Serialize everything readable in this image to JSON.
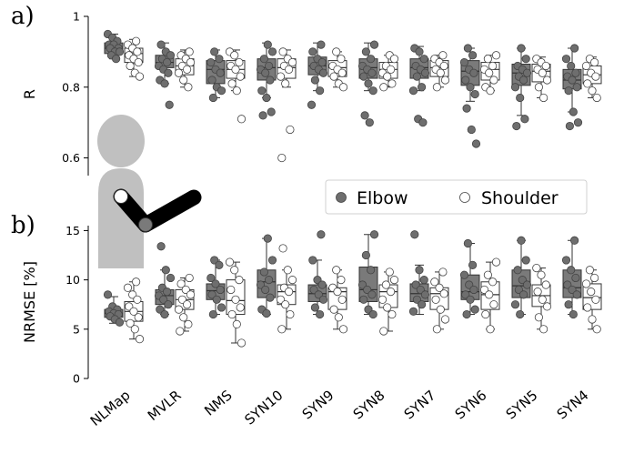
{
  "panels": {
    "a": "a)",
    "b": "b)"
  },
  "legend": {
    "elbow": "Elbow",
    "shoulder": "Shoulder"
  },
  "colors": {
    "elbow_fill": "#7a7a7a",
    "elbow_point": "#6e6e6e",
    "shoulder_fill": "#ffffff",
    "edge": "#333333",
    "silhouette": "#c0c0c0",
    "arm": "#000000"
  },
  "chart_data": [
    {
      "type": "box",
      "panel": "a",
      "ylabel": "R",
      "ylim": [
        0.55,
        1.0
      ],
      "yticks": [
        0.6,
        0.8,
        1
      ],
      "ytick_labels": [
        "0.6",
        "0.8",
        "1"
      ],
      "grid": false,
      "legend_position": "bottom-right",
      "categories": [
        "NLMap",
        "MVLR",
        "NMS",
        "SYN10",
        "SYN9",
        "SYN8",
        "SYN7",
        "SYN6",
        "SYN5",
        "SYN4"
      ],
      "series": [
        {
          "name": "Elbow",
          "boxes": [
            {
              "whislo": 0.88,
              "q1": 0.895,
              "med": 0.91,
              "q3": 0.925,
              "whishi": 0.95
            },
            {
              "whislo": 0.81,
              "q1": 0.855,
              "med": 0.87,
              "q3": 0.89,
              "whishi": 0.925
            },
            {
              "whislo": 0.77,
              "q1": 0.81,
              "med": 0.85,
              "q3": 0.875,
              "whishi": 0.905
            },
            {
              "whislo": 0.77,
              "q1": 0.82,
              "med": 0.855,
              "q3": 0.88,
              "whishi": 0.925
            },
            {
              "whislo": 0.79,
              "q1": 0.835,
              "med": 0.86,
              "q3": 0.885,
              "whishi": 0.925
            },
            {
              "whislo": 0.79,
              "q1": 0.825,
              "med": 0.855,
              "q3": 0.88,
              "whishi": 0.925
            },
            {
              "whislo": 0.79,
              "q1": 0.825,
              "med": 0.855,
              "q3": 0.88,
              "whishi": 0.915
            },
            {
              "whislo": 0.76,
              "q1": 0.805,
              "med": 0.845,
              "q3": 0.875,
              "whishi": 0.91
            },
            {
              "whislo": 0.72,
              "q1": 0.805,
              "med": 0.84,
              "q3": 0.865,
              "whishi": 0.91
            },
            {
              "whislo": 0.73,
              "q1": 0.795,
              "med": 0.82,
              "q3": 0.85,
              "whishi": 0.91
            }
          ],
          "points": [
            [
              0.95,
              0.94,
              0.93,
              0.92,
              0.92,
              0.91,
              0.91,
              0.9,
              0.9,
              0.89,
              0.88
            ],
            [
              0.92,
              0.9,
              0.89,
              0.88,
              0.87,
              0.86,
              0.85,
              0.84,
              0.82,
              0.81,
              0.75
            ],
            [
              0.9,
              0.88,
              0.87,
              0.85,
              0.84,
              0.82,
              0.8,
              0.79,
              0.77
            ],
            [
              0.92,
              0.9,
              0.88,
              0.86,
              0.85,
              0.84,
              0.82,
              0.79,
              0.77,
              0.73,
              0.72
            ],
            [
              0.92,
              0.9,
              0.88,
              0.87,
              0.86,
              0.85,
              0.84,
              0.82,
              0.79,
              0.75
            ],
            [
              0.92,
              0.9,
              0.88,
              0.86,
              0.85,
              0.84,
              0.83,
              0.81,
              0.79,
              0.72,
              0.7
            ],
            [
              0.91,
              0.9,
              0.88,
              0.86,
              0.85,
              0.84,
              0.83,
              0.8,
              0.79,
              0.71,
              0.7
            ],
            [
              0.91,
              0.89,
              0.87,
              0.85,
              0.84,
              0.82,
              0.8,
              0.78,
              0.74,
              0.68,
              0.64
            ],
            [
              0.91,
              0.88,
              0.86,
              0.85,
              0.84,
              0.83,
              0.82,
              0.8,
              0.77,
              0.71,
              0.69
            ],
            [
              0.91,
              0.88,
              0.86,
              0.84,
              0.83,
              0.82,
              0.8,
              0.79,
              0.73,
              0.7,
              0.69
            ]
          ]
        },
        {
          "name": "Shoulder",
          "boxes": [
            {
              "whislo": 0.83,
              "q1": 0.87,
              "med": 0.895,
              "q3": 0.91,
              "whishi": 0.935
            },
            {
              "whislo": 0.8,
              "q1": 0.835,
              "med": 0.86,
              "q3": 0.88,
              "whishi": 0.905
            },
            {
              "whislo": 0.79,
              "q1": 0.825,
              "med": 0.85,
              "q3": 0.875,
              "whishi": 0.905
            },
            {
              "whislo": 0.8,
              "q1": 0.825,
              "med": 0.855,
              "q3": 0.88,
              "whishi": 0.905
            },
            {
              "whislo": 0.8,
              "q1": 0.83,
              "med": 0.855,
              "q3": 0.875,
              "whishi": 0.9
            },
            {
              "whislo": 0.8,
              "q1": 0.825,
              "med": 0.85,
              "q3": 0.87,
              "whishi": 0.89
            },
            {
              "whislo": 0.8,
              "q1": 0.83,
              "med": 0.855,
              "q3": 0.875,
              "whishi": 0.89
            },
            {
              "whislo": 0.79,
              "q1": 0.82,
              "med": 0.85,
              "q3": 0.87,
              "whishi": 0.89
            },
            {
              "whislo": 0.77,
              "q1": 0.815,
              "med": 0.845,
              "q3": 0.865,
              "whishi": 0.885
            },
            {
              "whislo": 0.77,
              "q1": 0.81,
              "med": 0.835,
              "q3": 0.86,
              "whishi": 0.885
            }
          ],
          "points": [
            [
              0.93,
              0.92,
              0.91,
              0.9,
              0.89,
              0.88,
              0.87,
              0.86,
              0.84,
              0.83
            ],
            [
              0.9,
              0.89,
              0.88,
              0.87,
              0.86,
              0.85,
              0.84,
              0.82,
              0.8
            ],
            [
              0.9,
              0.89,
              0.87,
              0.86,
              0.85,
              0.83,
              0.81,
              0.79,
              0.71
            ],
            [
              0.9,
              0.88,
              0.87,
              0.86,
              0.85,
              0.83,
              0.81,
              0.68,
              0.6
            ],
            [
              0.9,
              0.88,
              0.86,
              0.85,
              0.84,
              0.83,
              0.81,
              0.8
            ],
            [
              0.89,
              0.88,
              0.86,
              0.85,
              0.84,
              0.83,
              0.81,
              0.8
            ],
            [
              0.89,
              0.88,
              0.87,
              0.86,
              0.85,
              0.84,
              0.82,
              0.8
            ],
            [
              0.89,
              0.88,
              0.86,
              0.85,
              0.84,
              0.82,
              0.8,
              0.79
            ],
            [
              0.88,
              0.87,
              0.86,
              0.85,
              0.84,
              0.82,
              0.8,
              0.77
            ],
            [
              0.88,
              0.87,
              0.86,
              0.84,
              0.83,
              0.81,
              0.79,
              0.77
            ]
          ]
        }
      ]
    },
    {
      "type": "box",
      "panel": "b",
      "ylabel": "NRMSE [%]",
      "ylim": [
        0,
        15.5
      ],
      "yticks": [
        0,
        5,
        10,
        15
      ],
      "ytick_labels": [
        "0",
        "5",
        "10",
        "15"
      ],
      "grid": false,
      "categories": [
        "NLMap",
        "MVLR",
        "NMS",
        "SYN10",
        "SYN9",
        "SYN8",
        "SYN7",
        "SYN6",
        "SYN5",
        "SYN4"
      ],
      "series": [
        {
          "name": "Elbow",
          "boxes": [
            {
              "whislo": 5.6,
              "q1": 6.2,
              "med": 6.6,
              "q3": 7.0,
              "whishi": 8.3
            },
            {
              "whislo": 6.5,
              "q1": 7.5,
              "med": 8.4,
              "q3": 9.0,
              "whishi": 11.0
            },
            {
              "whislo": 6.5,
              "q1": 8.0,
              "med": 8.9,
              "q3": 9.6,
              "whishi": 12.0
            },
            {
              "whislo": 6.5,
              "q1": 8.2,
              "med": 9.8,
              "q3": 11.0,
              "whishi": 14.2
            },
            {
              "whislo": 6.5,
              "q1": 7.8,
              "med": 8.6,
              "q3": 9.5,
              "whishi": 12.0
            },
            {
              "whislo": 6.5,
              "q1": 7.8,
              "med": 9.0,
              "q3": 11.3,
              "whishi": 14.6
            },
            {
              "whislo": 6.5,
              "q1": 7.8,
              "med": 8.6,
              "q3": 9.6,
              "whishi": 11.5
            },
            {
              "whislo": 6.5,
              "q1": 8.0,
              "med": 8.8,
              "q3": 10.5,
              "whishi": 13.7
            },
            {
              "whislo": 6.5,
              "q1": 8.2,
              "med": 9.4,
              "q3": 11.0,
              "whishi": 14.0
            },
            {
              "whislo": 6.5,
              "q1": 8.2,
              "med": 9.2,
              "q3": 11.0,
              "whishi": 14.0
            }
          ],
          "points": [
            [
              8.5,
              7.3,
              7.0,
              6.8,
              6.6,
              6.5,
              6.3,
              6.0,
              5.7
            ],
            [
              13.4,
              11.0,
              10.2,
              9.2,
              8.8,
              8.4,
              8.0,
              7.5,
              7.0,
              6.5
            ],
            [
              12.0,
              11.5,
              10.2,
              9.6,
              9.0,
              8.5,
              8.0,
              7.2,
              6.5
            ],
            [
              14.2,
              12.0,
              10.8,
              10.0,
              9.5,
              9.0,
              8.2,
              7.0,
              6.6
            ],
            [
              14.6,
              12.0,
              10.0,
              9.5,
              9.0,
              8.5,
              8.0,
              7.2,
              6.5
            ],
            [
              14.6,
              12.5,
              11.0,
              9.5,
              9.0,
              8.5,
              8.0,
              7.0,
              6.5
            ],
            [
              14.6,
              11.0,
              10.0,
              9.5,
              9.0,
              8.5,
              8.0,
              7.5,
              6.8
            ],
            [
              13.7,
              11.5,
              10.5,
              9.5,
              9.0,
              8.5,
              8.0,
              7.0,
              6.5
            ],
            [
              14.0,
              12.0,
              11.0,
              10.0,
              9.5,
              9.0,
              8.5,
              7.5,
              6.5
            ],
            [
              14.0,
              12.0,
              11.0,
              10.2,
              9.5,
              9.0,
              8.5,
              7.5,
              6.5
            ]
          ]
        },
        {
          "name": "Shoulder",
          "boxes": [
            {
              "whislo": 4.0,
              "q1": 5.8,
              "med": 6.8,
              "q3": 7.8,
              "whishi": 9.8
            },
            {
              "whislo": 4.8,
              "q1": 7.0,
              "med": 8.0,
              "q3": 9.0,
              "whishi": 10.2
            },
            {
              "whislo": 3.6,
              "q1": 6.5,
              "med": 7.9,
              "q3": 10.0,
              "whishi": 11.8
            },
            {
              "whislo": 5.0,
              "q1": 7.5,
              "med": 8.8,
              "q3": 9.5,
              "whishi": 11.0
            },
            {
              "whislo": 5.0,
              "q1": 7.0,
              "med": 8.8,
              "q3": 9.2,
              "whishi": 11.0
            },
            {
              "whislo": 4.8,
              "q1": 7.2,
              "med": 8.8,
              "q3": 9.5,
              "whishi": 10.8
            },
            {
              "whislo": 5.0,
              "q1": 7.0,
              "med": 8.6,
              "q3": 9.2,
              "whishi": 10.8
            },
            {
              "whislo": 5.0,
              "q1": 7.0,
              "med": 8.5,
              "q3": 9.8,
              "whishi": 11.8
            },
            {
              "whislo": 5.0,
              "q1": 7.3,
              "med": 8.4,
              "q3": 9.5,
              "whishi": 11.2
            },
            {
              "whislo": 5.0,
              "q1": 7.0,
              "med": 8.2,
              "q3": 9.6,
              "whishi": 11.0
            }
          ],
          "points": [
            [
              9.8,
              9.2,
              8.5,
              8.0,
              7.3,
              6.8,
              6.2,
              5.6,
              5.0,
              4.0
            ],
            [
              10.2,
              9.6,
              9.0,
              8.5,
              8.0,
              7.5,
              7.0,
              6.2,
              5.5,
              4.8
            ],
            [
              11.8,
              11.0,
              10.0,
              9.0,
              8.0,
              7.2,
              6.5,
              5.5,
              3.6
            ],
            [
              13.2,
              11.0,
              10.0,
              9.2,
              8.8,
              8.0,
              7.5,
              6.5,
              5.0
            ],
            [
              11.0,
              10.0,
              9.2,
              8.8,
              8.0,
              7.0,
              6.2,
              5.0
            ],
            [
              10.8,
              10.0,
              9.5,
              8.8,
              8.0,
              7.2,
              6.5,
              4.8
            ],
            [
              10.8,
              9.8,
              9.2,
              8.6,
              8.0,
              7.0,
              6.0,
              5.0
            ],
            [
              11.8,
              10.5,
              9.8,
              9.0,
              8.5,
              7.5,
              6.5,
              5.0
            ],
            [
              11.2,
              10.5,
              9.5,
              8.8,
              8.0,
              7.3,
              6.2,
              5.0
            ],
            [
              11.0,
              10.2,
              9.6,
              8.8,
              8.0,
              7.2,
              6.0,
              5.0
            ]
          ]
        }
      ]
    }
  ]
}
